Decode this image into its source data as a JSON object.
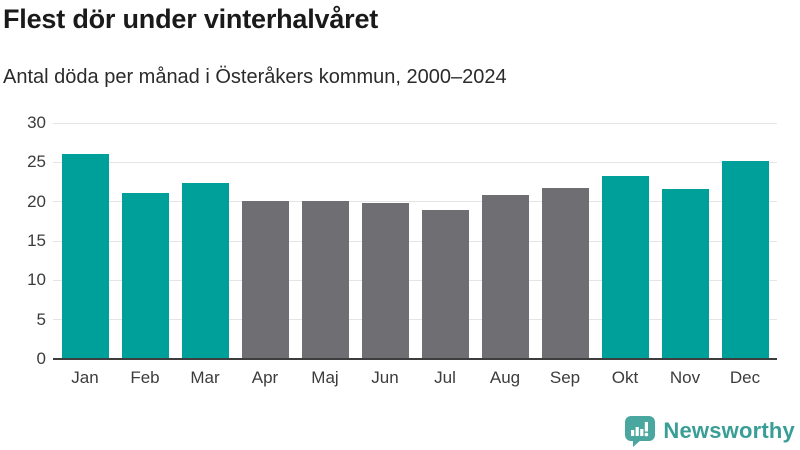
{
  "title": "Flest dör under vinterhalvåret",
  "subtitle": "Antal döda per månad i Österåkers kommun, 2000–2024",
  "chart_data": {
    "type": "bar",
    "title": "Flest dör under vinterhalvåret",
    "subtitle": "Antal döda per månad i Österåkers kommun, 2000–2024",
    "categories": [
      "Jan",
      "Feb",
      "Mar",
      "Apr",
      "Maj",
      "Jun",
      "Jul",
      "Aug",
      "Sep",
      "Okt",
      "Nov",
      "Dec"
    ],
    "values": [
      26.0,
      21.1,
      22.4,
      20.1,
      20.1,
      19.8,
      18.9,
      20.8,
      21.8,
      23.3,
      21.6,
      25.2
    ],
    "bar_colors": [
      "teal",
      "teal",
      "teal",
      "gray",
      "gray",
      "gray",
      "gray",
      "gray",
      "gray",
      "teal",
      "teal",
      "teal"
    ],
    "xlabel": "",
    "ylabel": "",
    "ylim": [
      0,
      30
    ],
    "yticks": [
      0,
      5,
      10,
      15,
      20,
      25,
      30
    ],
    "grid": true,
    "legend": "none",
    "highlight_meaning": "winter-half-year months highlighted in teal, summer months gray"
  },
  "colors": {
    "teal": "#00A09A",
    "gray": "#6F6E73",
    "grid": "#E5E5E5",
    "axis": "#3D3D3D",
    "title_text": "#1A1A1A",
    "subtitle_text": "#2B2B2B",
    "tick_text": "#3C3C3C",
    "brand_icon": "#4AA79F",
    "brand_text": "#389E96"
  },
  "branding": {
    "logo_text": "Newsworthy"
  }
}
